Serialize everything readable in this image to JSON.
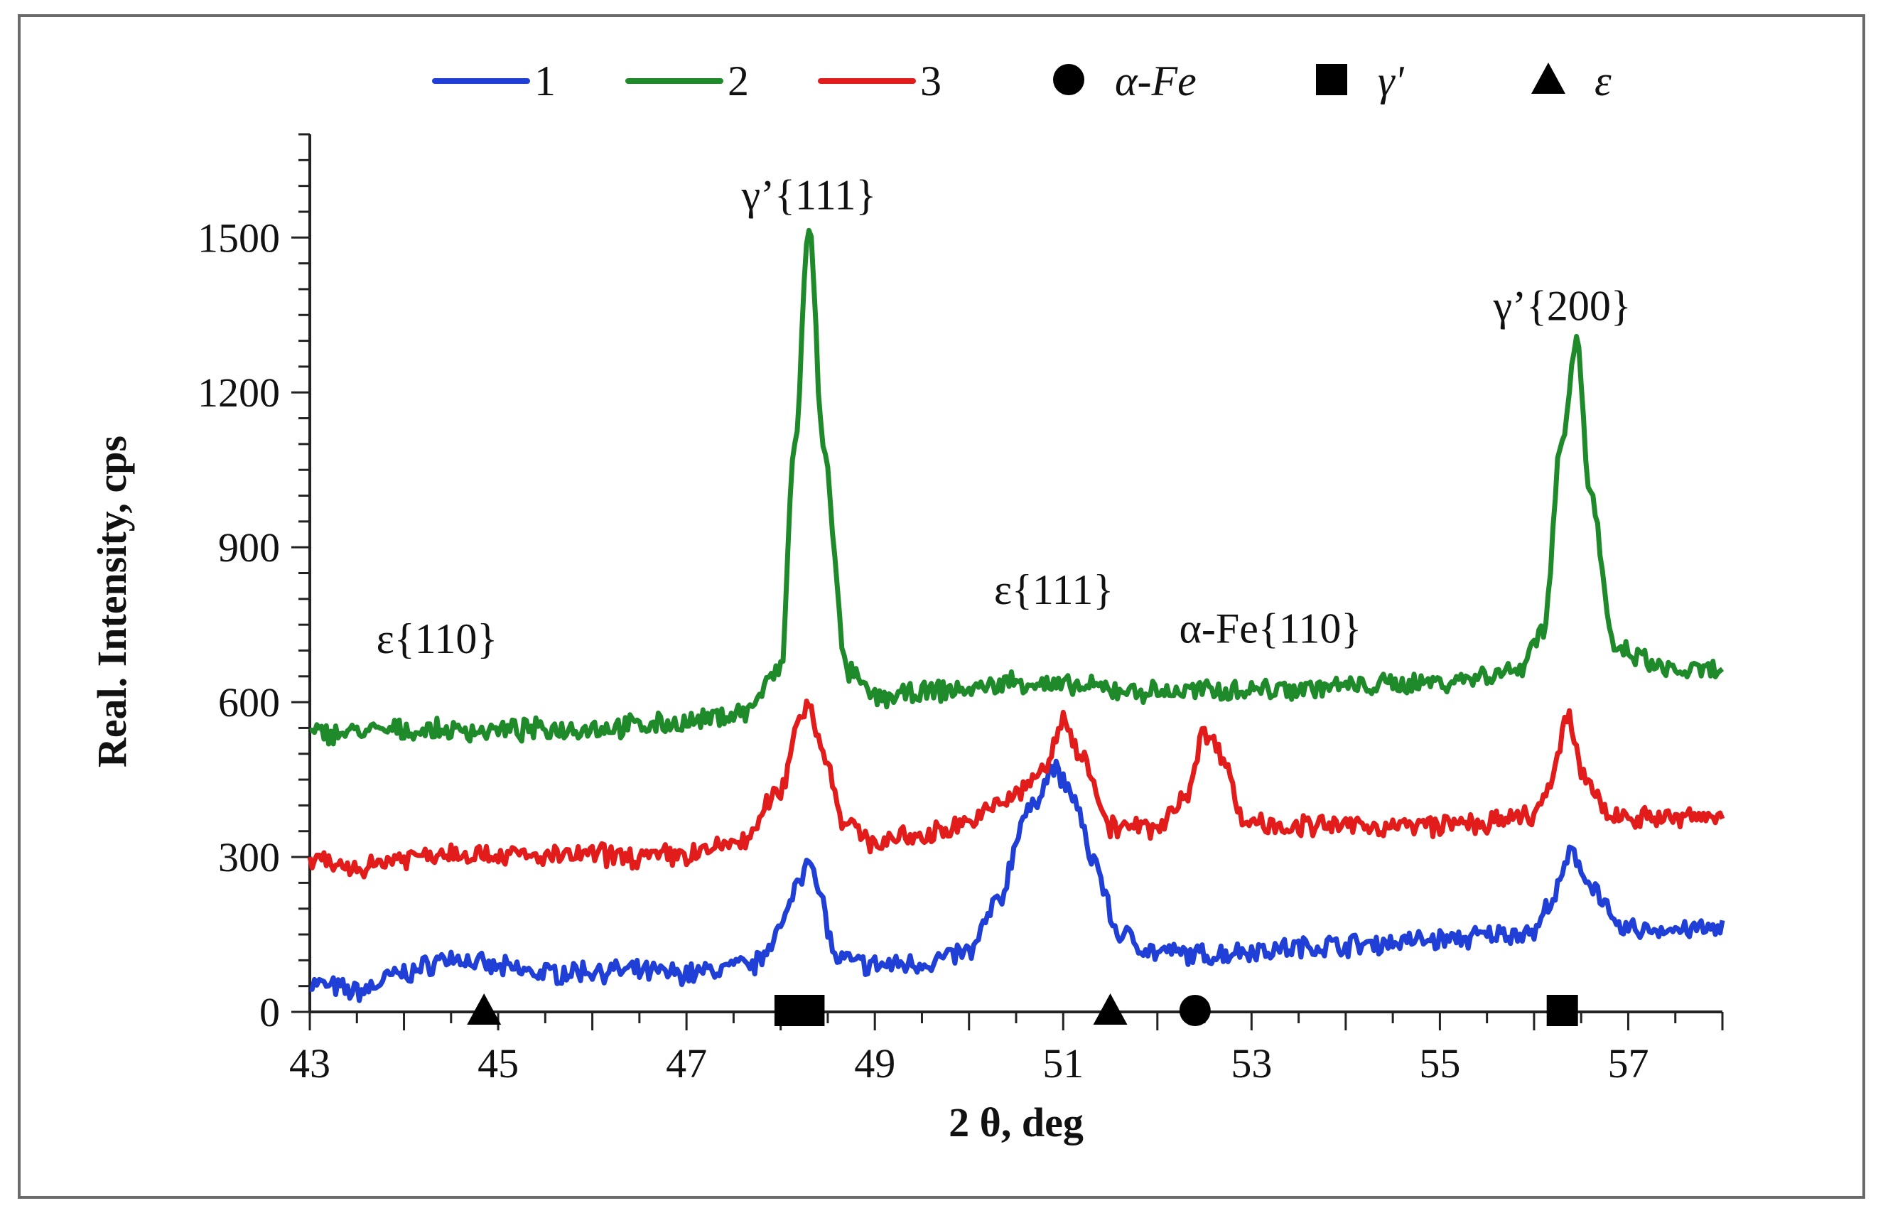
{
  "chart_data": {
    "type": "line",
    "title": "",
    "xlabel": "2 θ, deg",
    "ylabel": "Real. Intensity, cps",
    "xlim": [
      43,
      58
    ],
    "ylim": [
      0,
      1700
    ],
    "xticks": [
      43,
      45,
      47,
      49,
      51,
      53,
      55,
      57
    ],
    "yticks": [
      0,
      300,
      600,
      900,
      1200,
      1500
    ],
    "legend_position": "top",
    "series": [
      {
        "name": "1",
        "color": "#1f3fd6",
        "x": [
          43.0,
          43.5,
          44.0,
          44.5,
          45.0,
          45.5,
          46.0,
          47.0,
          47.7,
          48.0,
          48.2,
          48.3,
          48.4,
          48.6,
          49.0,
          49.5,
          50.0,
          50.3,
          50.6,
          50.9,
          51.1,
          51.3,
          51.6,
          52.0,
          52.5,
          53.0,
          54.0,
          55.0,
          56.0,
          56.2,
          56.4,
          56.6,
          56.9,
          57.5,
          58.0
        ],
        "y": [
          55,
          40,
          75,
          105,
          85,
          75,
          80,
          75,
          90,
          160,
          260,
          310,
          230,
          100,
          90,
          95,
          115,
          210,
          380,
          470,
          420,
          300,
          150,
          115,
          110,
          120,
          130,
          140,
          155,
          220,
          305,
          250,
          160,
          160,
          160
        ]
      },
      {
        "name": "2",
        "color": "#1f8a2a",
        "x": [
          43.0,
          44.0,
          45.0,
          46.0,
          47.0,
          47.6,
          48.0,
          48.15,
          48.3,
          48.45,
          48.7,
          49.0,
          50.0,
          50.5,
          51.0,
          52.0,
          53.0,
          54.0,
          55.0,
          55.8,
          56.1,
          56.3,
          56.45,
          56.6,
          56.85,
          57.5,
          58.0
        ],
        "y": [
          540,
          545,
          545,
          550,
          560,
          580,
          660,
          1100,
          1520,
          1100,
          660,
          610,
          625,
          640,
          630,
          620,
          625,
          630,
          640,
          660,
          740,
          1120,
          1300,
          1000,
          700,
          660,
          660
        ]
      },
      {
        "name": "3",
        "color": "#e21b1b",
        "x": [
          43.0,
          43.5,
          44.0,
          44.5,
          45.0,
          45.5,
          46.0,
          46.5,
          47.0,
          47.6,
          48.0,
          48.2,
          48.3,
          48.45,
          48.7,
          49.0,
          49.5,
          50.0,
          50.5,
          50.8,
          51.0,
          51.2,
          51.5,
          52.0,
          52.3,
          52.5,
          52.7,
          52.9,
          53.5,
          54.5,
          55.5,
          56.0,
          56.2,
          56.35,
          56.55,
          56.8,
          57.5,
          58.0
        ],
        "y": [
          290,
          280,
          300,
          310,
          305,
          300,
          305,
          300,
          305,
          330,
          430,
          570,
          600,
          500,
          360,
          330,
          340,
          370,
          420,
          470,
          560,
          500,
          360,
          355,
          420,
          540,
          500,
          370,
          360,
          360,
          365,
          380,
          450,
          570,
          450,
          380,
          375,
          380
        ]
      }
    ],
    "phase_markers": [
      {
        "phase": "ε",
        "shape": "triangle",
        "x": 44.85
      },
      {
        "phase": "γ'",
        "shape": "square",
        "x": 48.1
      },
      {
        "phase": "γ'",
        "shape": "square",
        "x": 48.3
      },
      {
        "phase": "ε",
        "shape": "triangle",
        "x": 51.5
      },
      {
        "phase": "α-Fe",
        "shape": "circle",
        "x": 52.4
      },
      {
        "phase": "γ'",
        "shape": "square",
        "x": 56.3
      }
    ],
    "annotations": [
      {
        "text": "γ’{111}",
        "x": 48.3,
        "y": 1555
      },
      {
        "text": "γ’{200}",
        "x": 56.3,
        "y": 1340
      },
      {
        "text": "ε{111}",
        "x": 50.9,
        "y": 790
      },
      {
        "text": "ε{110}",
        "x": 44.35,
        "y": 695
      },
      {
        "text": "α-Fe{110}",
        "x": 53.2,
        "y": 715
      }
    ],
    "legend": [
      {
        "label": "1",
        "kind": "line",
        "color": "#1f3fd6"
      },
      {
        "label": "2",
        "kind": "line",
        "color": "#1f8a2a"
      },
      {
        "label": "3",
        "kind": "line",
        "color": "#e21b1b"
      },
      {
        "label": "α-Fe",
        "kind": "circle"
      },
      {
        "label": "γ'",
        "kind": "square"
      },
      {
        "label": "ε",
        "kind": "triangle"
      }
    ]
  }
}
